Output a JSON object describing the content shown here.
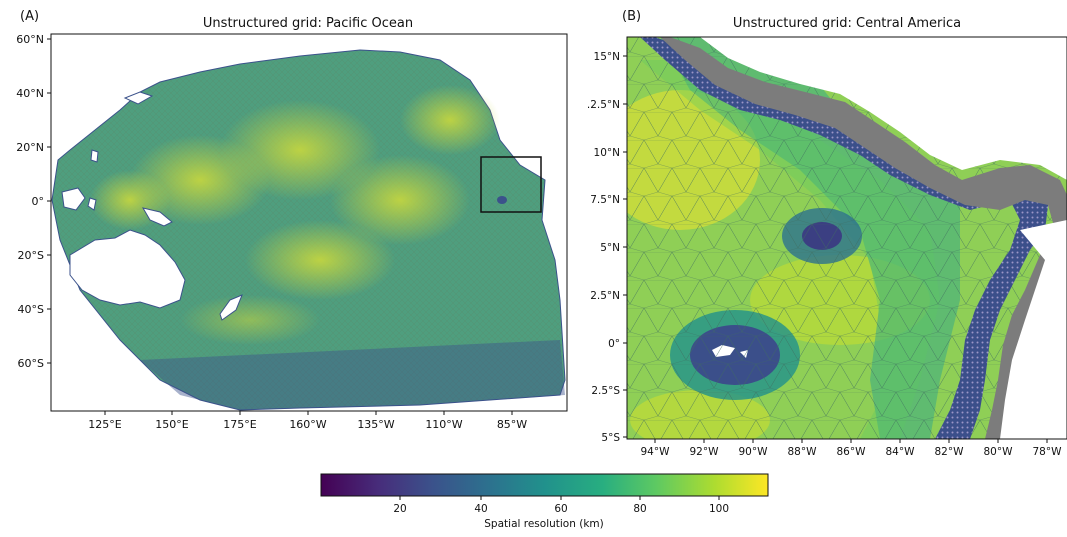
{
  "panel_a": {
    "label": "(A)",
    "title": "Unstructured grid: Pacific Ocean",
    "y_ticks": [
      "60°N",
      "40°N",
      "20°N",
      "0°",
      "20°S",
      "40°S",
      "60°S"
    ],
    "x_ticks": [
      "125°E",
      "150°E",
      "175°E",
      "160°W",
      "135°W",
      "110°W",
      "85°W"
    ]
  },
  "panel_b": {
    "label": "(B)",
    "title": "Unstructured grid: Central America",
    "y_ticks": [
      "15°N",
      ".2.5°N",
      "10°N",
      "7.5°N",
      "5°N",
      "2.5°N",
      "0°",
      "2.5°S",
      "5°S"
    ],
    "x_ticks": [
      "94°W",
      "92°W",
      "90°W",
      "88°W",
      "86°W",
      "84°W",
      "82°W",
      "80°W",
      "78°W"
    ]
  },
  "colorbar": {
    "label": "Spatial resolution (km)",
    "ticks": [
      "20",
      "40",
      "60",
      "80",
      "100"
    ],
    "colors": [
      "#440154",
      "#3b528b",
      "#21918c",
      "#5ec962",
      "#fde725"
    ]
  }
}
